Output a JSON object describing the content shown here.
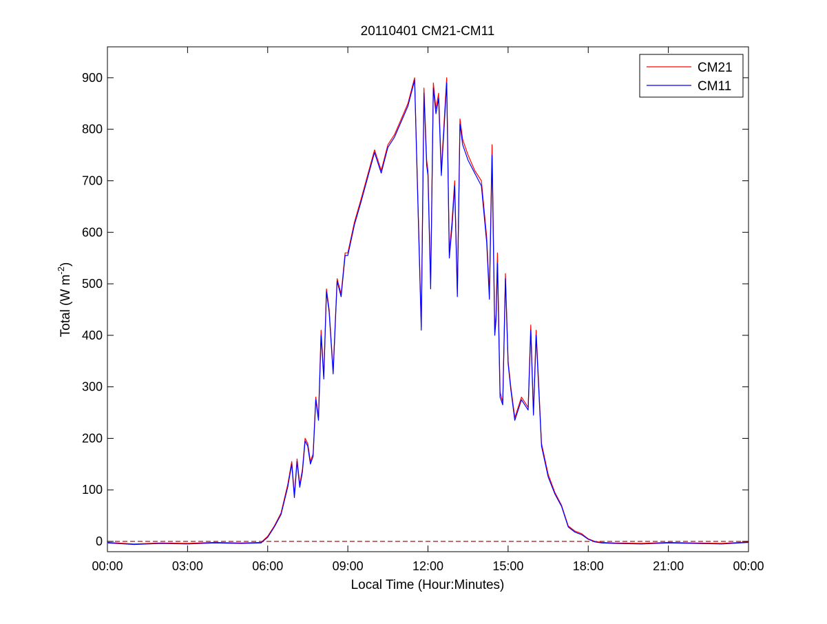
{
  "chart_data": {
    "type": "line",
    "title": "20110401 CM21-CM11",
    "xlabel": "Local Time (Hour:Minutes)",
    "ylabel": {
      "text": "Total (W m",
      "sup": "-2",
      "suffix": ")"
    },
    "xlim": [
      0,
      24
    ],
    "ylim": [
      -20,
      960
    ],
    "xticks": [
      0,
      3,
      6,
      9,
      12,
      15,
      18,
      21,
      24
    ],
    "xtick_labels": [
      "00:00",
      "03:00",
      "06:00",
      "09:00",
      "12:00",
      "15:00",
      "18:00",
      "21:00",
      "00:00"
    ],
    "yticks": [
      0,
      100,
      200,
      300,
      400,
      500,
      600,
      700,
      800,
      900
    ],
    "ytick_labels": [
      "0",
      "100",
      "200",
      "300",
      "400",
      "500",
      "600",
      "700",
      "800",
      "900"
    ],
    "grid": false,
    "legend_position": "top-right",
    "reference_line": {
      "y": 0,
      "style": "dashed",
      "color": "#8b0000"
    },
    "series": [
      {
        "name": "CM21",
        "color": "#ff0000",
        "x": [
          0,
          1,
          2,
          3,
          4,
          5,
          5.75,
          6.0,
          6.25,
          6.5,
          6.75,
          6.9,
          7.0,
          7.1,
          7.2,
          7.3,
          7.4,
          7.5,
          7.6,
          7.7,
          7.8,
          7.9,
          8.0,
          8.1,
          8.2,
          8.3,
          8.45,
          8.6,
          8.75,
          8.9,
          9.0,
          9.25,
          9.5,
          10.0,
          10.25,
          10.5,
          10.75,
          11.0,
          11.25,
          11.5,
          11.75,
          11.85,
          11.95,
          12.0,
          12.1,
          12.2,
          12.3,
          12.4,
          12.5,
          12.6,
          12.7,
          12.8,
          12.9,
          13.0,
          13.1,
          13.2,
          13.3,
          13.5,
          13.75,
          14.0,
          14.2,
          14.3,
          14.4,
          14.5,
          14.55,
          14.6,
          14.7,
          14.8,
          14.9,
          15.0,
          15.1,
          15.25,
          15.5,
          15.75,
          15.85,
          15.95,
          16.05,
          16.25,
          16.5,
          16.75,
          17.0,
          17.25,
          17.5,
          17.75,
          18.0,
          18.25,
          18.5,
          19,
          20,
          21,
          22,
          23,
          24
        ],
        "y": [
          -2,
          -5,
          -3,
          -4,
          -2,
          -3,
          -2,
          10,
          30,
          55,
          110,
          155,
          90,
          160,
          110,
          140,
          200,
          190,
          155,
          170,
          280,
          240,
          410,
          320,
          490,
          450,
          330,
          510,
          480,
          560,
          560,
          620,
          665,
          760,
          720,
          770,
          790,
          820,
          850,
          900,
          420,
          880,
          740,
          720,
          500,
          890,
          840,
          870,
          720,
          810,
          900,
          560,
          620,
          700,
          480,
          820,
          780,
          750,
          720,
          700,
          590,
          480,
          770,
          410,
          440,
          560,
          290,
          270,
          520,
          350,
          300,
          240,
          280,
          260,
          420,
          250,
          410,
          190,
          130,
          95,
          70,
          30,
          20,
          15,
          5,
          0,
          -2,
          -3,
          -4,
          -2,
          -3,
          -4,
          -1
        ]
      },
      {
        "name": "CM11",
        "color": "#0000ff",
        "x": [
          0,
          1,
          2,
          3,
          4,
          5,
          5.75,
          6.0,
          6.25,
          6.5,
          6.75,
          6.9,
          7.0,
          7.1,
          7.2,
          7.3,
          7.4,
          7.5,
          7.6,
          7.7,
          7.8,
          7.9,
          8.0,
          8.1,
          8.2,
          8.3,
          8.45,
          8.6,
          8.75,
          8.9,
          9.0,
          9.25,
          9.5,
          10.0,
          10.25,
          10.5,
          10.75,
          11.0,
          11.25,
          11.5,
          11.75,
          11.85,
          11.95,
          12.0,
          12.1,
          12.2,
          12.3,
          12.4,
          12.5,
          12.6,
          12.7,
          12.8,
          12.9,
          13.0,
          13.1,
          13.2,
          13.3,
          13.5,
          13.75,
          14.0,
          14.2,
          14.3,
          14.4,
          14.5,
          14.55,
          14.6,
          14.7,
          14.8,
          14.9,
          15.0,
          15.1,
          15.25,
          15.5,
          15.75,
          15.85,
          15.95,
          16.05,
          16.25,
          16.5,
          16.75,
          17.0,
          17.25,
          17.5,
          17.75,
          18.0,
          18.25,
          18.5,
          19,
          20,
          21,
          22,
          23,
          24
        ],
        "y": [
          -3,
          -6,
          -4,
          -5,
          -3,
          -4,
          -3,
          8,
          28,
          52,
          105,
          150,
          85,
          155,
          105,
          135,
          195,
          185,
          150,
          165,
          275,
          235,
          400,
          315,
          485,
          445,
          325,
          505,
          475,
          555,
          555,
          615,
          660,
          755,
          715,
          765,
          785,
          815,
          845,
          895,
          410,
          870,
          730,
          710,
          490,
          880,
          830,
          860,
          710,
          800,
          890,
          550,
          610,
          690,
          475,
          810,
          770,
          740,
          715,
          690,
          580,
          470,
          750,
          400,
          430,
          540,
          280,
          265,
          510,
          345,
          295,
          235,
          275,
          255,
          410,
          245,
          400,
          185,
          125,
          92,
          68,
          28,
          18,
          13,
          4,
          -1,
          -3,
          -4,
          -5,
          -3,
          -4,
          -5,
          -2
        ]
      }
    ]
  }
}
